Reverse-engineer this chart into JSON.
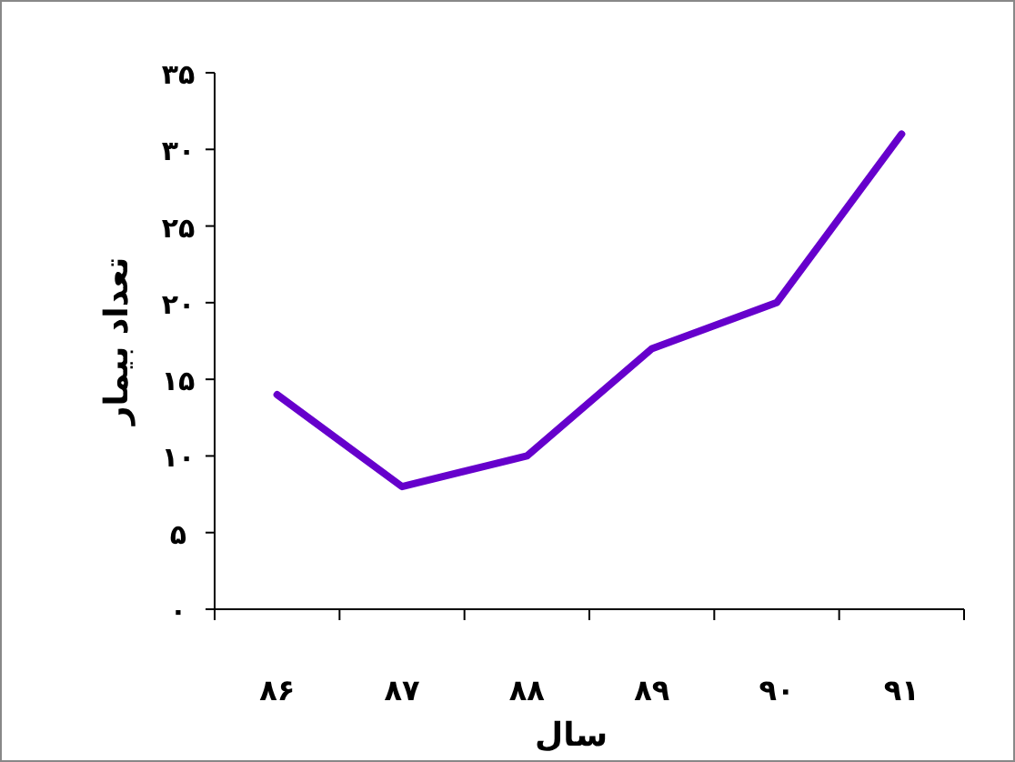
{
  "chart_data": {
    "type": "line",
    "xlabel": "سال",
    "ylabel": "تعداد بیمار",
    "categories": [
      "۸۶",
      "۸۷",
      "۸۸",
      "۸۹",
      "۹۰",
      "۹۱"
    ],
    "series": [
      {
        "color": "#6600cc",
        "values": [
          14,
          8,
          10,
          17,
          20,
          31
        ]
      }
    ],
    "ylim": [
      0,
      35
    ],
    "yticks": [
      {
        "value": 0,
        "label": "۰"
      },
      {
        "value": 5,
        "label": "۵"
      },
      {
        "value": 10,
        "label": "۱۰"
      },
      {
        "value": 15,
        "label": "۱۵"
      },
      {
        "value": 20,
        "label": "۲۰"
      },
      {
        "value": 25,
        "label": "۲۵"
      },
      {
        "value": 30,
        "label": "۳۰"
      },
      {
        "value": 35,
        "label": "۳۵"
      }
    ],
    "grid": false,
    "marker": "none",
    "line_style": "solid"
  }
}
